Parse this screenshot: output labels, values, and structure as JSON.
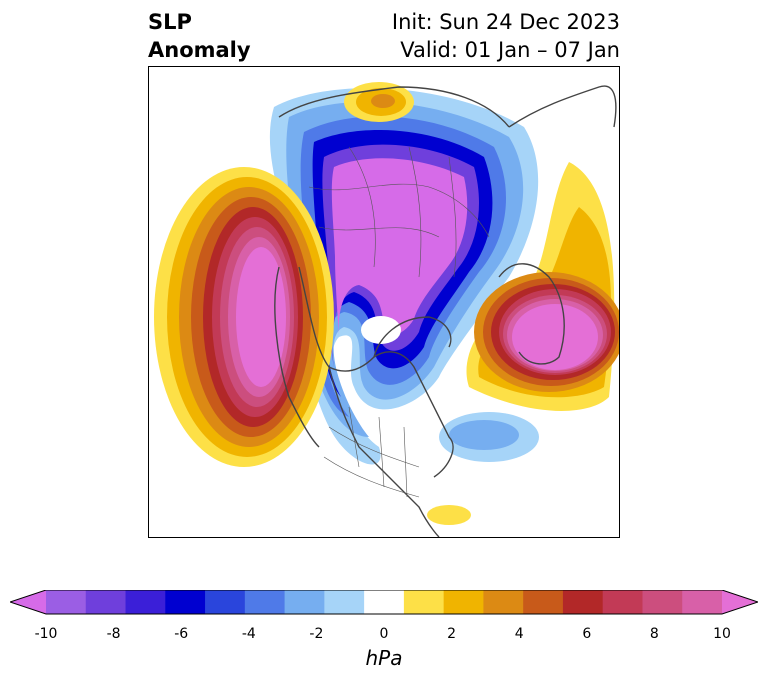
{
  "title": {
    "left": [
      "SLP",
      "Anomaly"
    ],
    "right": [
      "Init: Sun 24 Dec 2023",
      "Valid: 01 Jan – 07 Jan"
    ]
  },
  "colorbar": {
    "unit": "hPa",
    "ticks": [
      "-10",
      "-8",
      "-6",
      "-4",
      "-2",
      "0",
      "2",
      "4",
      "6",
      "8",
      "10"
    ],
    "colors": [
      "#d66be8",
      "#9b5ee4",
      "#6f3fdc",
      "#3b1fd8",
      "#0000d0",
      "#2a45dc",
      "#4f7ae8",
      "#76aef0",
      "#a6d4f8",
      "#ffffff",
      "#fde047",
      "#f0b400",
      "#dc8a14",
      "#c85a1a",
      "#b22828",
      "#c23a56",
      "#cc4e7e",
      "#d860a8",
      "#e46fd6"
    ],
    "extend": "both"
  },
  "map": {
    "projection": "north-polar-stereographic",
    "features": [
      "coastlines",
      "country-borders",
      "state-borders"
    ],
    "anomalies": [
      {
        "name": "arctic-low",
        "sign": "negative"
      },
      {
        "name": "north-pacific-high",
        "sign": "positive"
      },
      {
        "name": "north-atlantic-high",
        "sign": "positive"
      },
      {
        "name": "bering-high",
        "sign": "positive"
      }
    ]
  }
}
